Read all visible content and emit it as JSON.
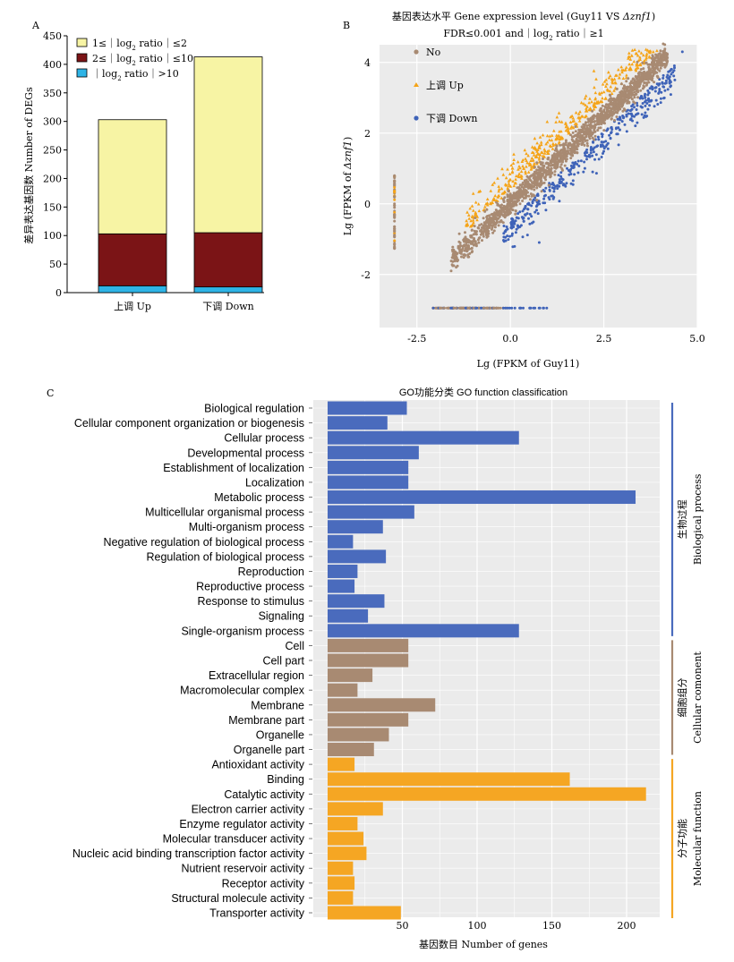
{
  "panels": {
    "a": {
      "label": "A"
    },
    "b": {
      "label": "B"
    },
    "c": {
      "label": "C"
    }
  },
  "chart_data": [
    {
      "type": "bar",
      "stacked": true,
      "title": "",
      "ylabel": "差异表达基因数 Number of DEGs",
      "ylim": [
        0,
        450
      ],
      "yticks": [
        "0",
        "50",
        "100",
        "150",
        "200",
        "250",
        "300",
        "350",
        "400",
        "450"
      ],
      "categories": [
        "上调 Up",
        "下调 Down"
      ],
      "series": [
        {
          "name": "｜log2 ratio｜>10",
          "legend_parts": [
            "｜log",
            "2",
            " ratio｜>10"
          ],
          "color": "#2eb4e6",
          "values": [
            12,
            10
          ]
        },
        {
          "name": "2≤｜log2 ratio｜≤10",
          "legend_parts": [
            "2≤｜log",
            "2",
            " ratio｜≤10"
          ],
          "color": "#7b1416",
          "values": [
            91,
            95
          ]
        },
        {
          "name": "1≤｜log2 ratio｜≤2",
          "legend_parts": [
            "1≤｜log",
            "2",
            " ratio｜≤2"
          ],
          "color": "#f7f4a4",
          "values": [
            200,
            308
          ]
        }
      ],
      "legend_position": "top-left"
    },
    {
      "type": "scatter",
      "title": "基因表达水平 Gene expression level (Guy11 VS Δznf1)",
      "subtitle_parts": [
        "FDR≤0.001 and｜log",
        "2",
        " ratio｜≥1"
      ],
      "xlabel": "Lg (FPKM of Guy11)",
      "ylabel": "Lg (FPKM of Δznf1)",
      "xlim": [
        -3.5,
        5.0
      ],
      "ylim": [
        -3.5,
        4.5
      ],
      "xticks": [
        "-2.5",
        "0.0",
        "2.5",
        "5.0"
      ],
      "yticks": [
        "-2",
        "0",
        "2",
        "4"
      ],
      "grid": true,
      "legend_position": "top-left",
      "series": [
        {
          "name": "No",
          "color": "#a88a72"
        },
        {
          "name": "上调 Up",
          "color": "#f5a418"
        },
        {
          "name": "下调 Down",
          "color": "#3f63b8"
        }
      ]
    },
    {
      "type": "bar",
      "orientation": "horizontal",
      "title": "GO功能分类 GO function classification",
      "xlabel": "基因数目 Number of genes",
      "xticks": [
        "50",
        "100",
        "150",
        "200"
      ],
      "grid": true,
      "groups": [
        {
          "name": "生物过程 Biological process",
          "zh": "生物过程",
          "en": "Biological process",
          "color": "#4a6bbd"
        },
        {
          "name": "细胞组分 Cellular comonent",
          "zh": "细胞组分",
          "en": "Cellular comonent",
          "color": "#a88a72"
        },
        {
          "name": "分子功能 Molecular function",
          "zh": "分子功能",
          "en": "Molecular function",
          "color": "#f5a623"
        }
      ],
      "categories": [
        {
          "label": "Biological regulation",
          "value": 53,
          "group": 0
        },
        {
          "label": "Cellular component organization or biogenesis",
          "value": 40,
          "group": 0
        },
        {
          "label": "Cellular process",
          "value": 128,
          "group": 0
        },
        {
          "label": "Developmental process",
          "value": 61,
          "group": 0
        },
        {
          "label": "Establishment of localization",
          "value": 54,
          "group": 0
        },
        {
          "label": "Localization",
          "value": 54,
          "group": 0
        },
        {
          "label": "Metabolic process",
          "value": 206,
          "group": 0
        },
        {
          "label": "Multicellular organismal process",
          "value": 58,
          "group": 0
        },
        {
          "label": "Multi-organism process",
          "value": 37,
          "group": 0
        },
        {
          "label": "Negative regulation of biological process",
          "value": 17,
          "group": 0
        },
        {
          "label": "Regulation of biological process",
          "value": 39,
          "group": 0
        },
        {
          "label": "Reproduction",
          "value": 20,
          "group": 0
        },
        {
          "label": "Reproductive process",
          "value": 18,
          "group": 0
        },
        {
          "label": "Response to stimulus",
          "value": 38,
          "group": 0
        },
        {
          "label": "Signaling",
          "value": 27,
          "group": 0
        },
        {
          "label": "Single-organism process",
          "value": 128,
          "group": 0
        },
        {
          "label": "Cell",
          "value": 54,
          "group": 1
        },
        {
          "label": "Cell part",
          "value": 54,
          "group": 1
        },
        {
          "label": "Extracellular region",
          "value": 30,
          "group": 1
        },
        {
          "label": "Macromolecular complex",
          "value": 20,
          "group": 1
        },
        {
          "label": "Membrane",
          "value": 72,
          "group": 1
        },
        {
          "label": "Membrane part",
          "value": 54,
          "group": 1
        },
        {
          "label": "Organelle",
          "value": 41,
          "group": 1
        },
        {
          "label": "Organelle part",
          "value": 31,
          "group": 1
        },
        {
          "label": "Antioxidant activity",
          "value": 18,
          "group": 2
        },
        {
          "label": "Binding",
          "value": 162,
          "group": 2
        },
        {
          "label": "Catalytic activity",
          "value": 213,
          "group": 2
        },
        {
          "label": "Electron carrier activity",
          "value": 37,
          "group": 2
        },
        {
          "label": "Enzyme regulator activity",
          "value": 20,
          "group": 2
        },
        {
          "label": "Molecular transducer activity",
          "value": 24,
          "group": 2
        },
        {
          "label": "Nucleic acid binding transcription factor activity",
          "value": 26,
          "group": 2
        },
        {
          "label": "Nutrient reservoir activity",
          "value": 17,
          "group": 2
        },
        {
          "label": "Receptor activity",
          "value": 18,
          "group": 2
        },
        {
          "label": "Structural molecule activity",
          "value": 17,
          "group": 2
        },
        {
          "label": "Transporter activity",
          "value": 49,
          "group": 2
        }
      ]
    }
  ]
}
